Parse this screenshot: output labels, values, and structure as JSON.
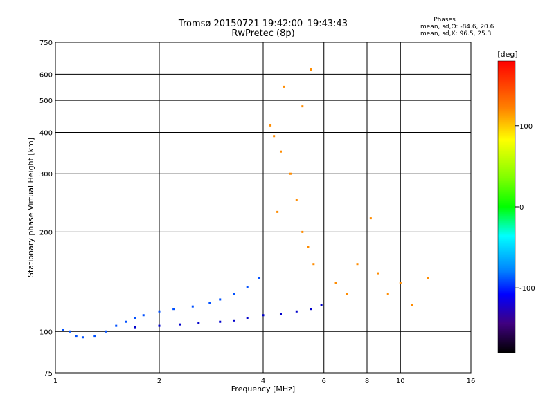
{
  "chart_data": {
    "type": "scatter",
    "title": "Tromsø 20150721 19:42:00–19:43:43",
    "subtitle": "RwPretec (8p)",
    "xlabel": "Frequency [MHz]",
    "ylabel": "Stationary phase Virtual Height [km]",
    "x_scale": "log",
    "y_scale": "log",
    "xlim": [
      1,
      16
    ],
    "ylim": [
      75,
      750
    ],
    "x_ticks": [
      1,
      2,
      4,
      6,
      8,
      10,
      16
    ],
    "y_ticks": [
      75,
      100,
      200,
      300,
      400,
      500,
      600,
      750
    ],
    "grid": true,
    "header": {
      "heading": "Phases",
      "line1": "mean, sd,O: -84.6, 20.6",
      "line2": "mean, sd,X:  96.5, 25.3"
    },
    "colorbar": {
      "label": "[deg]",
      "range": [
        -180,
        180
      ],
      "ticks": [
        100,
        0,
        -100
      ]
    },
    "series": [
      {
        "values": [
          {
            "x": 1.05,
            "y": 101
          },
          {
            "x": 1.1,
            "y": 100
          },
          {
            "x": 1.15,
            "y": 97
          },
          {
            "x": 1.2,
            "y": 96
          },
          {
            "x": 1.3,
            "y": 97
          },
          {
            "x": 1.4,
            "y": 100
          },
          {
            "x": 1.5,
            "y": 104
          },
          {
            "x": 1.6,
            "y": 107
          },
          {
            "x": 1.7,
            "y": 110
          },
          {
            "x": 1.8,
            "y": 112
          },
          {
            "x": 2.0,
            "y": 115
          },
          {
            "x": 2.2,
            "y": 117
          },
          {
            "x": 2.5,
            "y": 119
          },
          {
            "x": 2.8,
            "y": 122
          },
          {
            "x": 3.0,
            "y": 125
          },
          {
            "x": 3.3,
            "y": 130
          },
          {
            "x": 3.6,
            "y": 136
          },
          {
            "x": 3.9,
            "y": 145
          }
        ]
      },
      {
        "values": [
          {
            "x": 1.7,
            "y": 103
          },
          {
            "x": 2.0,
            "y": 104
          },
          {
            "x": 2.3,
            "y": 105
          },
          {
            "x": 2.6,
            "y": 106
          },
          {
            "x": 3.0,
            "y": 107
          },
          {
            "x": 3.3,
            "y": 108
          },
          {
            "x": 3.6,
            "y": 110
          },
          {
            "x": 4.0,
            "y": 112
          },
          {
            "x": 4.5,
            "y": 113
          },
          {
            "x": 5.0,
            "y": 115
          },
          {
            "x": 5.5,
            "y": 117
          },
          {
            "x": 5.9,
            "y": 120
          }
        ]
      },
      {
        "values": [
          {
            "x": 4.2,
            "y": 420
          },
          {
            "x": 4.3,
            "y": 390
          },
          {
            "x": 4.5,
            "y": 350
          },
          {
            "x": 4.8,
            "y": 300
          },
          {
            "x": 5.0,
            "y": 250
          },
          {
            "x": 5.2,
            "y": 200
          },
          {
            "x": 5.4,
            "y": 180
          },
          {
            "x": 5.6,
            "y": 160
          },
          {
            "x": 4.6,
            "y": 550
          },
          {
            "x": 5.2,
            "y": 480
          },
          {
            "x": 5.5,
            "y": 620
          },
          {
            "x": 4.4,
            "y": 230
          },
          {
            "x": 6.5,
            "y": 140
          },
          {
            "x": 7.0,
            "y": 130
          },
          {
            "x": 7.5,
            "y": 160
          },
          {
            "x": 8.2,
            "y": 220
          },
          {
            "x": 8.6,
            "y": 150
          },
          {
            "x": 9.2,
            "y": 130
          },
          {
            "x": 10.0,
            "y": 140
          },
          {
            "x": 10.8,
            "y": 120
          },
          {
            "x": 12.0,
            "y": 145
          }
        ]
      }
    ]
  }
}
